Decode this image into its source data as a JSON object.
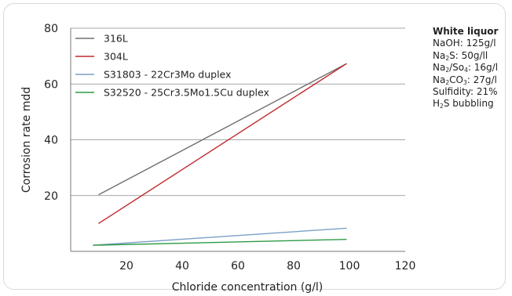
{
  "chart_data": {
    "type": "line",
    "title": "",
    "xlabel": "Chloride concentration (g/l)",
    "ylabel": "Corrosion rate mdd",
    "xlim": [
      0,
      120
    ],
    "ylim": [
      0,
      80
    ],
    "x_ticks": [
      20,
      40,
      60,
      80,
      100,
      120
    ],
    "y_ticks": [
      20,
      40,
      60,
      80
    ],
    "grid": "horizontal",
    "legend_position": "top-left",
    "series": [
      {
        "name": "316L",
        "color": "#707070",
        "x": [
          10,
          99
        ],
        "y": [
          20.3,
          67.3
        ]
      },
      {
        "name": "304L",
        "color": "#c0282d",
        "x": [
          10,
          99
        ],
        "y": [
          10.0,
          67.3
        ]
      },
      {
        "name": "S31803 - 22Cr3Mo duplex",
        "color": "#7b9ec8",
        "x": [
          8,
          99
        ],
        "y": [
          2.2,
          8.3
        ]
      },
      {
        "name": "S32520 - 25Cr3.5Mo1.5Cu duplex",
        "color": "#2e9a46",
        "x": [
          8,
          99
        ],
        "y": [
          2.2,
          4.3
        ]
      }
    ]
  },
  "notes": {
    "title": "White liquor",
    "lines": [
      [
        {
          "t": "NaOH: 125g/l"
        }
      ],
      [
        {
          "t": "Na"
        },
        {
          "t": "2",
          "sub": true
        },
        {
          "t": "S: 50g/ll"
        }
      ],
      [
        {
          "t": "Na"
        },
        {
          "t": "2",
          "sub": true
        },
        {
          "t": "/So"
        },
        {
          "t": "4",
          "sub": true
        },
        {
          "t": ": 16g/l"
        }
      ],
      [
        {
          "t": "Na"
        },
        {
          "t": "2",
          "sub": true
        },
        {
          "t": "CO"
        },
        {
          "t": "3",
          "sub": true
        },
        {
          "t": ": 27g/l"
        }
      ],
      [
        {
          "t": "Sulfidity: 21%"
        }
      ],
      [
        {
          "t": "H"
        },
        {
          "t": "2",
          "sub": true
        },
        {
          "t": "S bubbling"
        }
      ]
    ]
  }
}
